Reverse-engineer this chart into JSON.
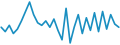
{
  "values": [
    4.5,
    3.8,
    4.8,
    3.5,
    4.2,
    5.5,
    7.0,
    8.5,
    6.5,
    5.2,
    4.8,
    5.5,
    4.5,
    5.8,
    4.0,
    2.5,
    7.5,
    2.0,
    4.5,
    6.5,
    3.5,
    6.0,
    4.0,
    6.8,
    3.8,
    7.0,
    4.2,
    6.5,
    5.0,
    4.5
  ],
  "line_color": "#1a8fc1",
  "linewidth": 1.2,
  "background_color": "#ffffff"
}
